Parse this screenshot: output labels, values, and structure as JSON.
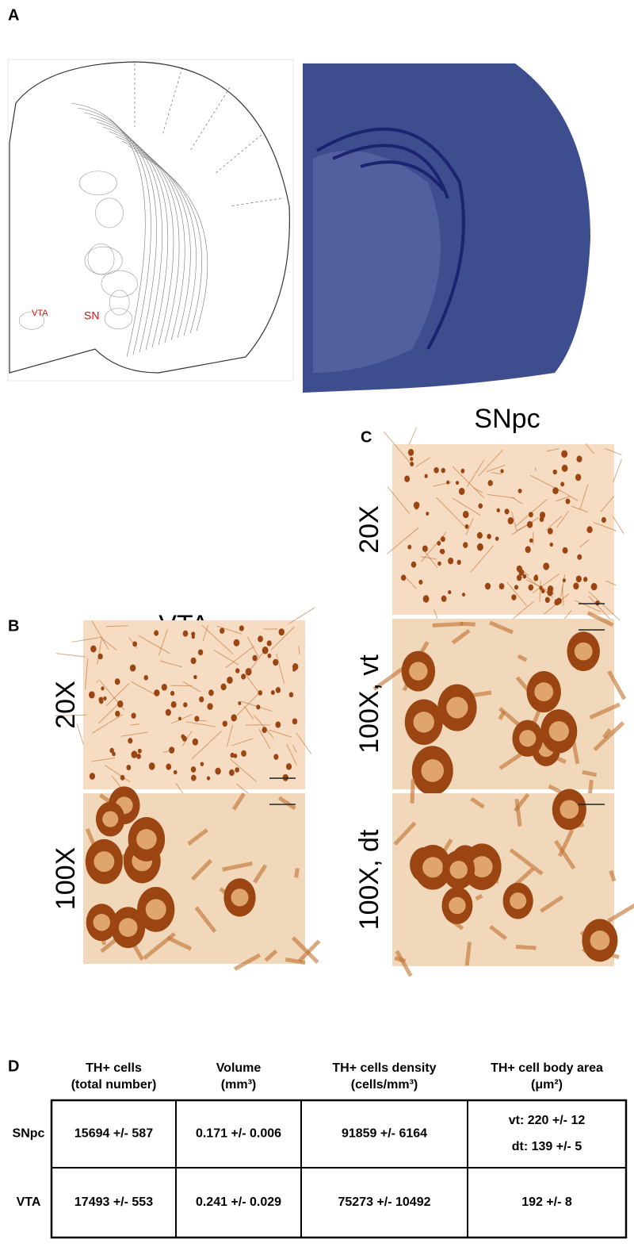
{
  "panel_a": {
    "label": "A",
    "atlas_labels": [
      "VTA",
      "SN"
    ]
  },
  "panel_b": {
    "label": "B",
    "title": "VTA",
    "rows": [
      "20X",
      "100X"
    ]
  },
  "panel_c": {
    "label": "C",
    "title": "SNpc",
    "rows": [
      "20X",
      "100X, vt",
      "100X, dt"
    ]
  },
  "panel_d": {
    "label": "D",
    "headers": [
      [
        "TH+ cells",
        "(total number)"
      ],
      [
        "Volume",
        "(mm³)"
      ],
      [
        "TH+ cells density",
        "(cells/mm³)"
      ],
      [
        "TH+ cell body area",
        "(μm²)"
      ]
    ],
    "rows": [
      {
        "label": "SNpc",
        "cells": [
          [
            "15694 +/- 587"
          ],
          [
            "0.171 +/- 0.006"
          ],
          [
            "91859 +/- 6164"
          ],
          [
            "vt: 220 +/- 12",
            "dt: 139 +/- 5"
          ]
        ]
      },
      {
        "label": "VTA",
        "cells": [
          [
            "17493 +/- 553"
          ],
          [
            "0.241 +/- 0.029"
          ],
          [
            "75273 +/- 10492"
          ],
          [
            "192 +/- 8"
          ]
        ]
      }
    ]
  }
}
